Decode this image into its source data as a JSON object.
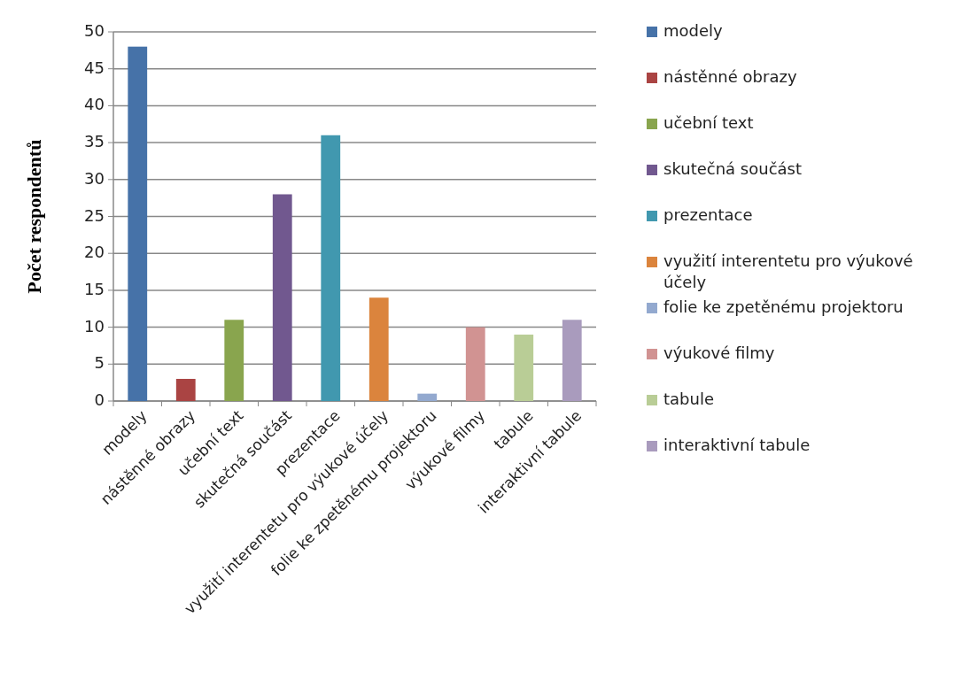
{
  "chart_data": {
    "type": "bar",
    "ylabel": "Počet respondentů",
    "categories": [
      "modely",
      "nástěnné obrazy",
      "učební text",
      "skutečná součást",
      "prezentace",
      "využití interentetu pro výukové účely",
      "folie ke zpetěnému projektoru",
      "výukové filmy",
      "tabule",
      "interaktivní tabule"
    ],
    "series": [
      {
        "name": "modely",
        "color": "#4672a8",
        "values": [
          48,
          null,
          null,
          null,
          null,
          null,
          null,
          null,
          null,
          null
        ]
      },
      {
        "name": "nástěnné obrazy",
        "color": "#aa4443",
        "values": [
          null,
          3,
          null,
          null,
          null,
          null,
          null,
          null,
          null,
          null
        ]
      },
      {
        "name": "učební text",
        "color": "#89a54e",
        "values": [
          null,
          null,
          11,
          null,
          null,
          null,
          null,
          null,
          null,
          null
        ]
      },
      {
        "name": "skutečná součást",
        "color": "#71588f",
        "values": [
          null,
          null,
          null,
          28,
          null,
          null,
          null,
          null,
          null,
          null
        ]
      },
      {
        "name": "prezentace",
        "color": "#4198af",
        "values": [
          null,
          null,
          null,
          null,
          36,
          null,
          null,
          null,
          null,
          null
        ]
      },
      {
        "name": "využití interentetu pro výukové účely",
        "color": "#db843d",
        "values": [
          null,
          null,
          null,
          null,
          null,
          14,
          null,
          null,
          null,
          null
        ]
      },
      {
        "name": "folie ke zpetěnému projektoru",
        "color": "#93a9cf",
        "values": [
          null,
          null,
          null,
          null,
          null,
          null,
          1,
          null,
          null,
          null
        ]
      },
      {
        "name": "výukové filmy",
        "color": "#d19392",
        "values": [
          null,
          null,
          null,
          null,
          null,
          null,
          null,
          10,
          null,
          null
        ]
      },
      {
        "name": "tabule",
        "color": "#b9cd96",
        "values": [
          null,
          null,
          null,
          null,
          null,
          null,
          null,
          null,
          9,
          null
        ]
      },
      {
        "name": "interaktivní tabule",
        "color": "#a99bbd",
        "values": [
          null,
          null,
          null,
          null,
          null,
          null,
          null,
          null,
          null,
          11
        ]
      }
    ],
    "ylim": [
      0,
      50
    ],
    "yticks": [
      0,
      5,
      10,
      15,
      20,
      25,
      30,
      35,
      40,
      45,
      50
    ],
    "grid": "y",
    "legend": "right"
  }
}
